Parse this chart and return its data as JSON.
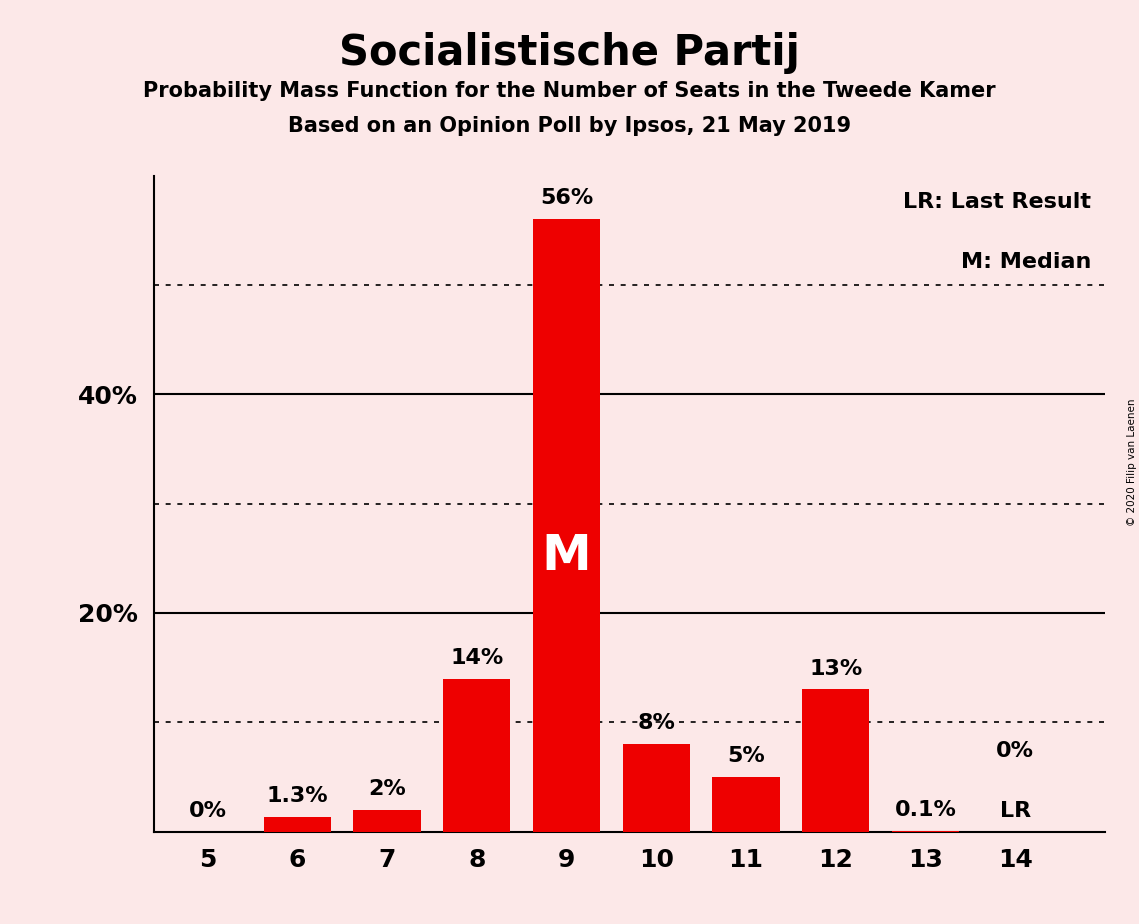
{
  "title": "Socialistische Partij",
  "subtitle1": "Probability Mass Function for the Number of Seats in the Tweede Kamer",
  "subtitle2": "Based on an Opinion Poll by Ipsos, 21 May 2019",
  "copyright": "© 2020 Filip van Laenen",
  "seats": [
    5,
    6,
    7,
    8,
    9,
    10,
    11,
    12,
    13,
    14
  ],
  "probabilities": [
    0.0,
    1.3,
    2.0,
    14.0,
    56.0,
    8.0,
    5.0,
    13.0,
    0.1,
    0.0
  ],
  "labels": [
    "0%",
    "1.3%",
    "2%",
    "14%",
    "56%",
    "8%",
    "5%",
    "13%",
    "0.1%",
    "0%"
  ],
  "bar_color": "#ee0000",
  "background_color": "#fce8e8",
  "ylim_max": 60,
  "solid_yticks": [
    20,
    40
  ],
  "dotted_yticks": [
    10,
    30,
    50
  ],
  "ytick_labels": {
    "20": "20%",
    "40": "40%"
  },
  "median_seat": 9,
  "median_label": "M",
  "lr_seat": 14,
  "lr_label": "LR",
  "legend_text1": "LR: Last Result",
  "legend_text2": "M: Median",
  "title_fontsize": 30,
  "subtitle_fontsize": 15,
  "tick_fontsize": 18,
  "label_fontsize": 16,
  "legend_fontsize": 16,
  "median_fontsize": 36
}
